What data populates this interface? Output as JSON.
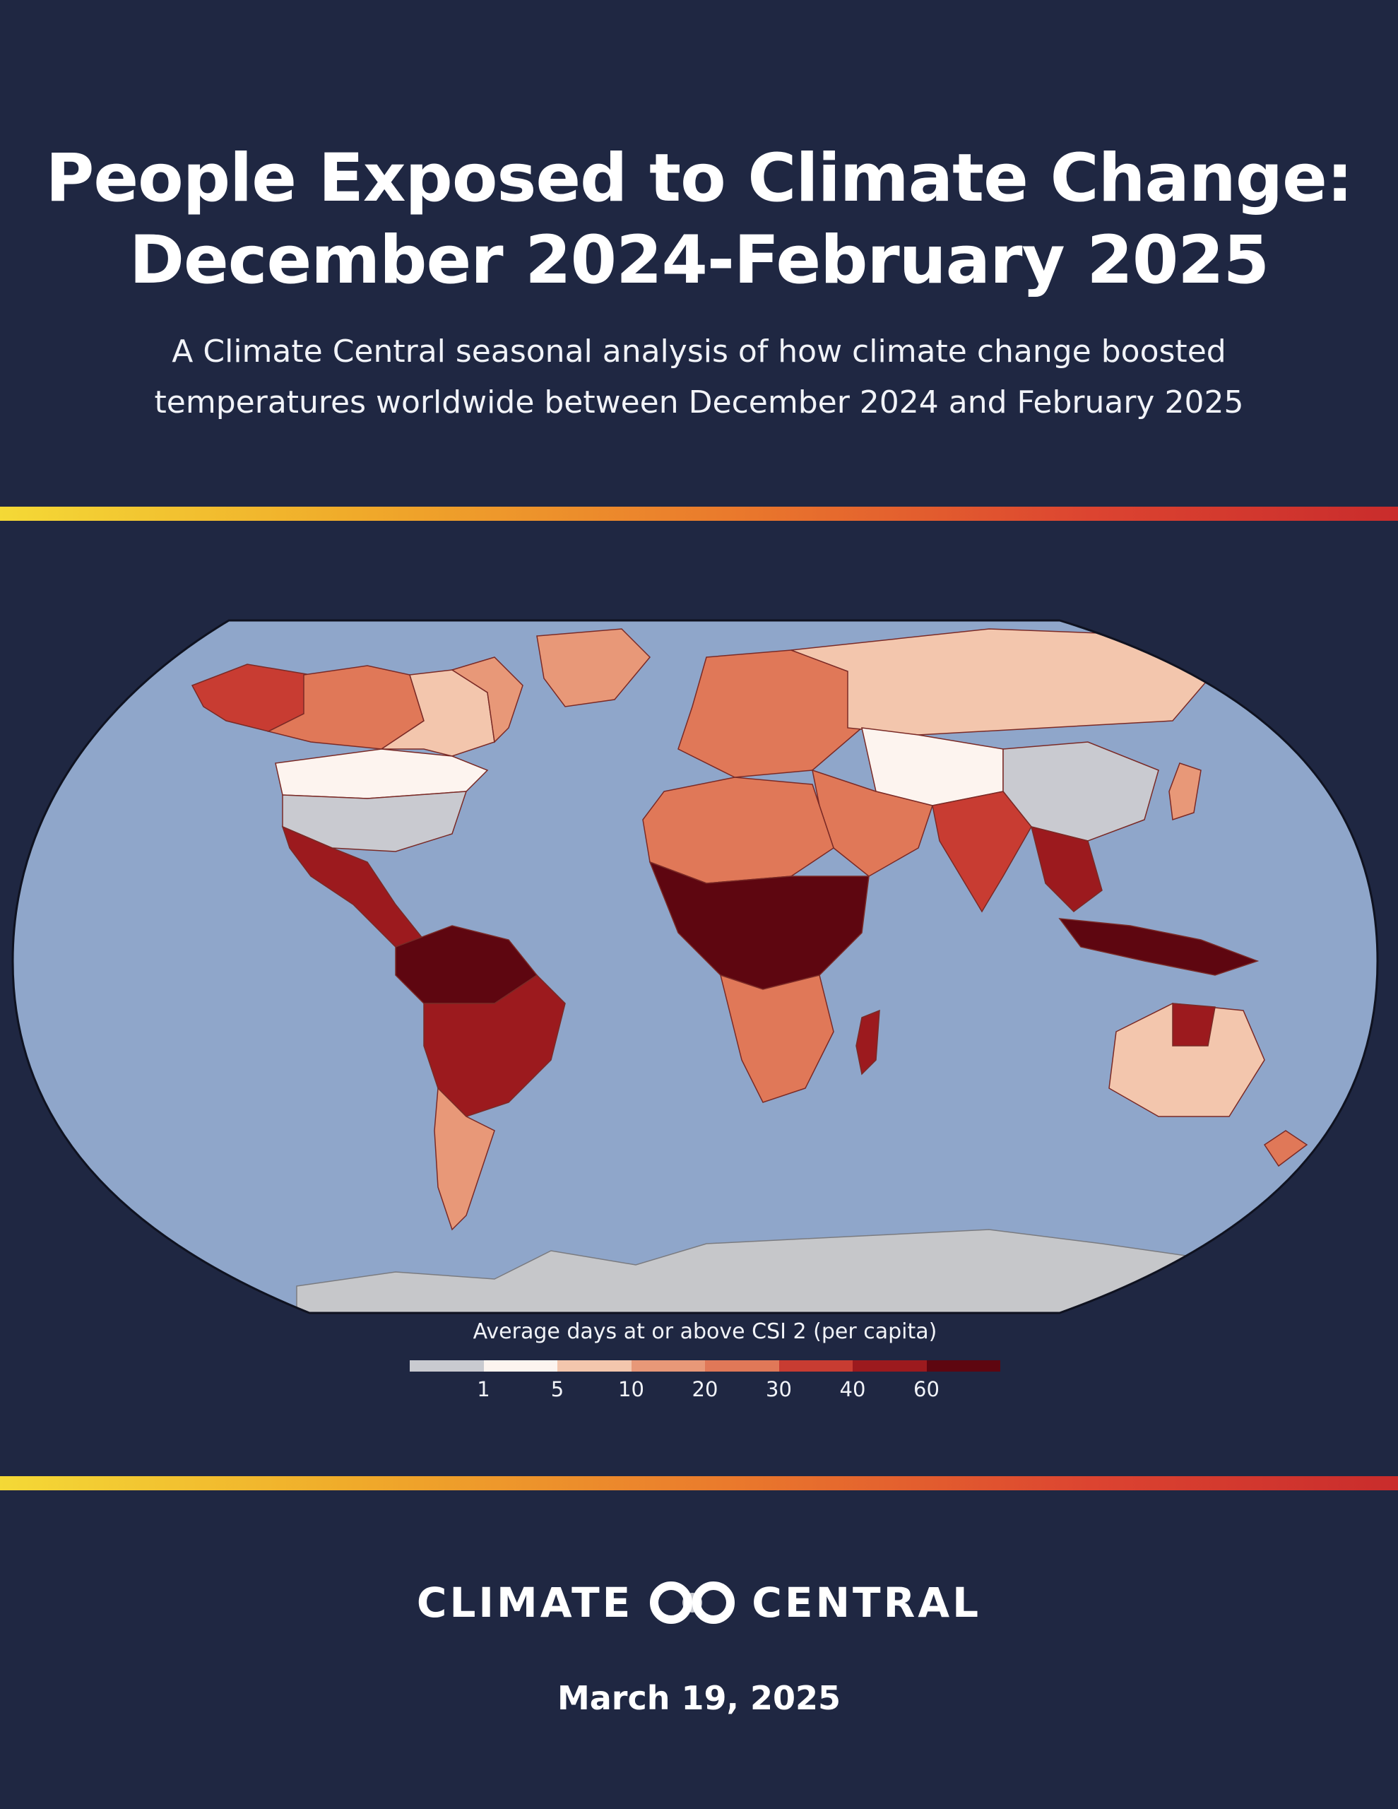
{
  "header": {
    "title_line1": "People Exposed to Climate Change:",
    "title_line2": "December 2024-February 2025",
    "subtitle_line1": "A Climate Central seasonal analysis of how climate change boosted",
    "subtitle_line2": "temperatures worldwide between December 2024 and February 2025"
  },
  "map": {
    "ocean_color": "#8fa6ca",
    "antarctica_color": "#c6c7ca",
    "legend": {
      "title": "Average days at or above CSI 2 (per capita)",
      "ticks": [
        "1",
        "5",
        "10",
        "20",
        "30",
        "40",
        "60"
      ],
      "colors": [
        "#c9cad0",
        "#fdf4ef",
        "#f3c6ad",
        "#e89878",
        "#e07858",
        "#c83c32",
        "#9c1a1e",
        "#5e0610"
      ]
    }
  },
  "footer": {
    "logo_left": "CLIMATE",
    "logo_right": "CENTRAL",
    "date": "March 19, 2025"
  }
}
